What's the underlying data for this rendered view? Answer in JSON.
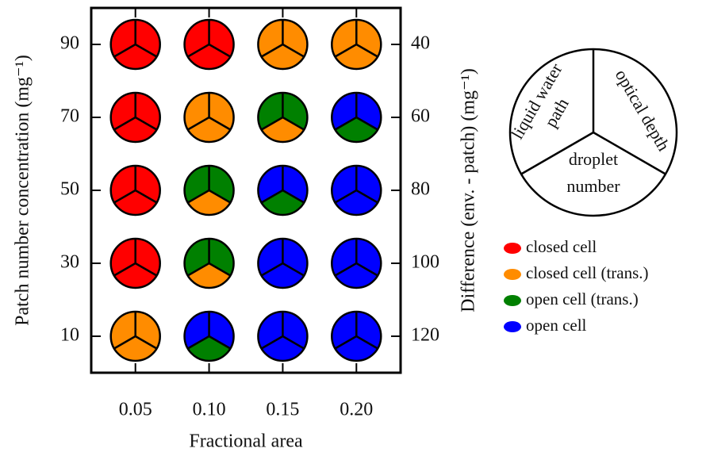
{
  "chart_data": {
    "type": "pie-grid",
    "xlabel": "Fractional area",
    "ylabel": "Patch number concentration (mg⁻¹)",
    "y2label": "Difference (env. - patch) (mg⁻¹)",
    "xlim": [
      0.02,
      0.23
    ],
    "xticks": [
      0.05,
      {
        "value": 0.1,
        "label": "0.10"
      },
      0.15,
      {
        "value": 0.2,
        "label": "0.20"
      }
    ],
    "ylim": [
      0,
      100
    ],
    "yticks": [
      10,
      30,
      50,
      70,
      90
    ],
    "y2lim": [
      130,
      30
    ],
    "y2ticks": [
      40,
      60,
      80,
      100,
      120
    ],
    "legend": [
      {
        "name": "closed cell",
        "color": "#ff0000"
      },
      {
        "name": "closed cell (trans.)",
        "color": "#ff8c00"
      },
      {
        "name": "open cell (trans.)",
        "color": "#008000"
      },
      {
        "name": "open cell",
        "color": "#0000ff"
      }
    ],
    "key": [
      [
        "liquid water",
        "path"
      ],
      [
        "optical depth"
      ],
      [
        "droplet",
        "number"
      ]
    ],
    "points": [
      {
        "x": 0.05,
        "y": 90,
        "regimes": [
          "closed cell",
          "closed cell",
          "closed cell"
        ]
      },
      {
        "x": 0.1,
        "y": 90,
        "regimes": [
          "closed cell",
          "closed cell",
          "closed cell"
        ]
      },
      {
        "x": 0.15,
        "y": 90,
        "regimes": [
          "closed cell (trans.)",
          "closed cell (trans.)",
          "closed cell (trans.)"
        ]
      },
      {
        "x": 0.2,
        "y": 90,
        "regimes": [
          "closed cell (trans.)",
          "closed cell (trans.)",
          "closed cell (trans.)"
        ]
      },
      {
        "x": 0.05,
        "y": 70,
        "regimes": [
          "closed cell",
          "closed cell",
          "closed cell"
        ]
      },
      {
        "x": 0.1,
        "y": 70,
        "regimes": [
          "closed cell (trans.)",
          "closed cell (trans.)",
          "closed cell (trans.)"
        ]
      },
      {
        "x": 0.15,
        "y": 70,
        "regimes": [
          "open cell (trans.)",
          "open cell (trans.)",
          "closed cell (trans.)"
        ]
      },
      {
        "x": 0.2,
        "y": 70,
        "regimes": [
          "open cell",
          "open cell",
          "open cell (trans.)"
        ]
      },
      {
        "x": 0.05,
        "y": 50,
        "regimes": [
          "closed cell",
          "closed cell",
          "closed cell"
        ]
      },
      {
        "x": 0.1,
        "y": 50,
        "regimes": [
          "open cell (trans.)",
          "open cell (trans.)",
          "closed cell (trans.)"
        ]
      },
      {
        "x": 0.15,
        "y": 50,
        "regimes": [
          "open cell",
          "open cell",
          "open cell (trans.)"
        ]
      },
      {
        "x": 0.2,
        "y": 50,
        "regimes": [
          "open cell",
          "open cell",
          "open cell"
        ]
      },
      {
        "x": 0.05,
        "y": 30,
        "regimes": [
          "closed cell",
          "closed cell",
          "closed cell"
        ]
      },
      {
        "x": 0.1,
        "y": 30,
        "regimes": [
          "open cell (trans.)",
          "open cell (trans.)",
          "closed cell (trans.)"
        ]
      },
      {
        "x": 0.15,
        "y": 30,
        "regimes": [
          "open cell",
          "open cell",
          "open cell"
        ]
      },
      {
        "x": 0.2,
        "y": 30,
        "regimes": [
          "open cell",
          "open cell",
          "open cell"
        ]
      },
      {
        "x": 0.05,
        "y": 10,
        "regimes": [
          "closed cell (trans.)",
          "closed cell (trans.)",
          "closed cell (trans.)"
        ]
      },
      {
        "x": 0.1,
        "y": 10,
        "regimes": [
          "open cell",
          "open cell",
          "open cell (trans.)"
        ]
      },
      {
        "x": 0.15,
        "y": 10,
        "regimes": [
          "open cell",
          "open cell",
          "open cell"
        ]
      },
      {
        "x": 0.2,
        "y": 10,
        "regimes": [
          "open cell",
          "open cell",
          "open cell"
        ]
      }
    ]
  }
}
